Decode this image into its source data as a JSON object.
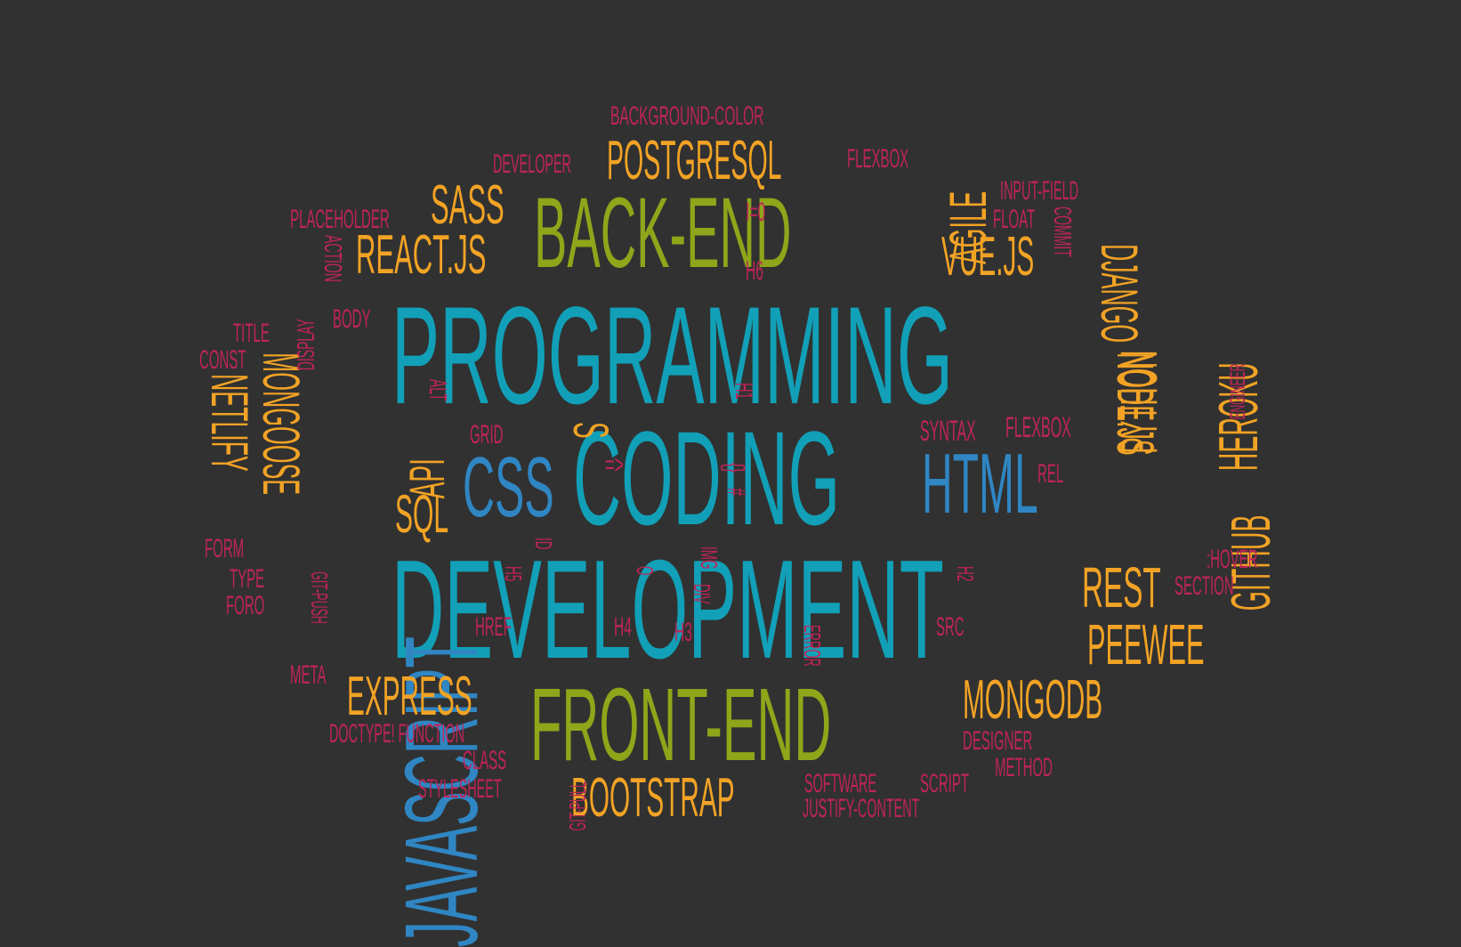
{
  "colors": {
    "background": "#313131",
    "teal": "#11a0b7",
    "green": "#8fa51a",
    "orange": "#f2a325",
    "blue": "#2f86c3",
    "crimson": "#c1245a"
  },
  "words": {
    "programming": "PROGRAMMING",
    "coding": "CODING",
    "development": "DEVELOPMENT",
    "back_end": "BACK-END",
    "front_end": "FRONT-END",
    "css": "CSS",
    "html": "HTML",
    "javascript": "JAVASCRIPT",
    "postgresql": "POSTGRESQL",
    "sass": "SASS",
    "react": "REACT.JS",
    "vuejs": "VUE.JS",
    "agile": "AGILE",
    "sql": "SQL",
    "api": "API",
    "express": "EXPRESS",
    "mongodb": "MONGODB",
    "bootstrap": "BOOTSTRAP",
    "rest": "REST",
    "peewee": "PEEWEE",
    "mongoose": "MONGOOSE",
    "netlify": "NETLIFY",
    "python": "PYTHON",
    "django": "DJANGO",
    "nodejs": "NODE.JS",
    "heroku": "HEROKU",
    "github": "GITHUB",
    "background_color": "BACKGROUND-COLOR",
    "developer": "DEVELOPER",
    "flexbox": "FLEXBOX",
    "placeholder": "PLACEHOLDER",
    "i0": "I=0",
    "input_field": "INPUT-FIELD",
    "float": "FLOAT",
    "commit": "COMMIT",
    "h6": "H6",
    "action": "ACTION",
    "display": "DISPLAY",
    "body": "BODY",
    "title": "TITLE",
    "const": "CONST",
    "engineer": "ENGINEER",
    "alt": "ALT",
    "h1": "H1",
    "grid": "GRID",
    "s": "S",
    "syntax": "SYNTAX",
    "rel": "REL",
    "arrow": "=>",
    "braces": "{}",
    "hash": "#",
    "form": "FORM",
    "type": "TYPE",
    "foro": "FORO",
    "git_push": "GIT-PUSH",
    "id": "ID",
    "h5": "H5",
    "o": "O",
    "img": "IMG",
    "div": "DIV",
    "h2": "H2",
    "hover": ":HOVER",
    "section": "SECTION",
    "href": "HREF",
    "h4": "H4",
    "h3": "H3",
    "src": "SRC",
    "error": "ERROR",
    "meta": "META",
    "doctype": "DOCTYPE! FUNCTION",
    "designer": "DESIGNER",
    "class": "CLASS",
    "method": "METHOD",
    "git_pull": "GIT-PULL",
    "stylesheet": "STYLESHEET",
    "software": "SOFTWARE",
    "script": "SCRIPT",
    "justify_content": "JUSTIFY-CONTENT"
  }
}
